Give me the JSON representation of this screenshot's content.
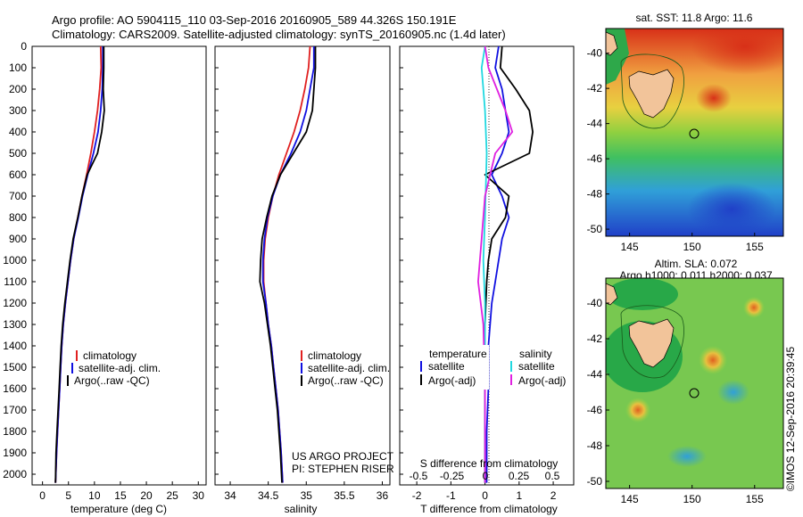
{
  "header": {
    "line1": "Argo profile: AO 5904115_110 03-Sep-2016 20160905_589 44.326S 150.191E",
    "line2": "Climatology: CARS2009. Satellite-adjusted climatology: synTS_20160905.nc (1.4d later)"
  },
  "depth_ticks": [
    "0",
    "100",
    "200",
    "300",
    "400",
    "500",
    "600",
    "700",
    "800",
    "900",
    "1000",
    "1100",
    "1200",
    "1300",
    "1400",
    "1500",
    "1600",
    "1700",
    "1800",
    "1900",
    "2000"
  ],
  "colors": {
    "climatology": "#e02020",
    "satellite": "#1010e0",
    "argo": "#000000",
    "salinity_satellite": "#20d8e0",
    "salinity_argo": "#e020e0"
  },
  "chart_data": [
    {
      "type": "line",
      "xlabel": "temperature (deg C)",
      "ylim": [
        0,
        2050
      ],
      "xlim": [
        -2,
        31.5
      ],
      "x_ticks": [
        "0",
        "5",
        "10",
        "15",
        "20",
        "25",
        "30"
      ],
      "legend": [
        "climatology",
        "satellite-adj. clim.",
        "Argo(..raw -QC)"
      ],
      "series": [
        {
          "name": "climatology",
          "color": "#e02020",
          "points": [
            [
              11.2,
              0
            ],
            [
              11.3,
              100
            ],
            [
              11.0,
              200
            ],
            [
              10.6,
              300
            ],
            [
              10.0,
              400
            ],
            [
              9.3,
              500
            ],
            [
              8.5,
              600
            ],
            [
              7.6,
              700
            ],
            [
              6.8,
              800
            ],
            [
              6.0,
              900
            ],
            [
              5.4,
              1000
            ],
            [
              4.9,
              1100
            ],
            [
              4.4,
              1200
            ],
            [
              4.0,
              1300
            ],
            [
              3.7,
              1400
            ],
            [
              3.5,
              1500
            ],
            [
              3.3,
              1600
            ],
            [
              3.1,
              1700
            ],
            [
              2.9,
              1800
            ],
            [
              2.7,
              1900
            ],
            [
              2.5,
              2040
            ]
          ]
        },
        {
          "name": "satellite-adj. clim.",
          "color": "#1010e0",
          "points": [
            [
              11.6,
              0
            ],
            [
              11.6,
              100
            ],
            [
              11.5,
              200
            ],
            [
              11.2,
              300
            ],
            [
              10.7,
              400
            ],
            [
              9.8,
              500
            ],
            [
              8.7,
              600
            ],
            [
              7.7,
              700
            ],
            [
              6.9,
              800
            ],
            [
              6.0,
              900
            ],
            [
              5.4,
              1000
            ],
            [
              4.9,
              1100
            ],
            [
              4.4,
              1200
            ],
            [
              4.0,
              1300
            ],
            [
              3.7,
              1400
            ],
            [
              3.5,
              1500
            ],
            [
              3.3,
              1600
            ],
            [
              3.1,
              1700
            ],
            [
              2.9,
              1800
            ],
            [
              2.7,
              1900
            ],
            [
              2.5,
              2040
            ]
          ]
        },
        {
          "name": "Argo(..raw -QC)",
          "color": "#000000",
          "points": [
            [
              11.8,
              0
            ],
            [
              11.8,
              100
            ],
            [
              11.7,
              200
            ],
            [
              11.9,
              300
            ],
            [
              11.4,
              400
            ],
            [
              10.6,
              500
            ],
            [
              8.6,
              600
            ],
            [
              7.6,
              700
            ],
            [
              6.8,
              800
            ],
            [
              5.9,
              900
            ],
            [
              5.3,
              1000
            ],
            [
              4.8,
              1100
            ],
            [
              4.3,
              1200
            ],
            [
              3.9,
              1300
            ],
            [
              3.6,
              1400
            ],
            [
              3.4,
              1500
            ],
            [
              3.2,
              1600
            ],
            [
              3.0,
              1700
            ],
            [
              2.8,
              1800
            ],
            [
              2.6,
              1900
            ],
            [
              2.5,
              2040
            ]
          ]
        }
      ]
    },
    {
      "type": "line",
      "xlabel": "salinity",
      "ylim": [
        0,
        2050
      ],
      "xlim": [
        33.8,
        36.1
      ],
      "x_ticks": [
        "34",
        "34.5",
        "35",
        "35.5",
        "36"
      ],
      "legend": [
        "climatology",
        "satellite-adj. clim.",
        "Argo(..raw -QC)"
      ],
      "annotation": [
        "US ARGO PROJECT",
        "PI: STEPHEN RISER"
      ],
      "series": [
        {
          "name": "climatology",
          "color": "#e02020",
          "points": [
            [
              35.05,
              0
            ],
            [
              35.03,
              100
            ],
            [
              34.98,
              200
            ],
            [
              34.92,
              300
            ],
            [
              34.84,
              400
            ],
            [
              34.74,
              500
            ],
            [
              34.64,
              600
            ],
            [
              34.56,
              700
            ],
            [
              34.5,
              800
            ],
            [
              34.46,
              900
            ],
            [
              34.44,
              1000
            ],
            [
              34.44,
              1100
            ],
            [
              34.47,
              1200
            ],
            [
              34.5,
              1300
            ],
            [
              34.54,
              1400
            ],
            [
              34.57,
              1500
            ],
            [
              34.6,
              1600
            ],
            [
              34.63,
              1700
            ],
            [
              34.65,
              1800
            ],
            [
              34.67,
              1900
            ],
            [
              34.69,
              2040
            ]
          ]
        },
        {
          "name": "satellite-adj. clim.",
          "color": "#1010e0",
          "points": [
            [
              35.1,
              0
            ],
            [
              35.1,
              100
            ],
            [
              35.05,
              200
            ],
            [
              35.0,
              300
            ],
            [
              34.92,
              400
            ],
            [
              34.8,
              500
            ],
            [
              34.66,
              600
            ],
            [
              34.56,
              700
            ],
            [
              34.49,
              800
            ],
            [
              34.45,
              900
            ],
            [
              34.43,
              1000
            ],
            [
              34.43,
              1100
            ],
            [
              34.47,
              1200
            ],
            [
              34.5,
              1300
            ],
            [
              34.54,
              1400
            ],
            [
              34.57,
              1500
            ],
            [
              34.6,
              1600
            ],
            [
              34.63,
              1700
            ],
            [
              34.65,
              1800
            ],
            [
              34.67,
              1900
            ],
            [
              34.69,
              2040
            ]
          ]
        },
        {
          "name": "Argo(..raw -QC)",
          "color": "#000000",
          "points": [
            [
              35.12,
              0
            ],
            [
              35.12,
              100
            ],
            [
              35.1,
              200
            ],
            [
              35.08,
              300
            ],
            [
              35.0,
              400
            ],
            [
              34.83,
              500
            ],
            [
              34.66,
              600
            ],
            [
              34.55,
              700
            ],
            [
              34.48,
              800
            ],
            [
              34.42,
              900
            ],
            [
              34.4,
              1000
            ],
            [
              34.39,
              1100
            ],
            [
              34.45,
              1200
            ],
            [
              34.49,
              1300
            ],
            [
              34.53,
              1400
            ],
            [
              34.56,
              1500
            ],
            [
              34.59,
              1600
            ],
            [
              34.62,
              1700
            ],
            [
              34.64,
              1800
            ],
            [
              34.66,
              1900
            ],
            [
              34.68,
              2040
            ]
          ]
        }
      ]
    },
    {
      "type": "line",
      "xlabel": "T difference from climatology",
      "xlabel_top": "S difference from climatology",
      "ylim": [
        0,
        2050
      ],
      "xlim": [
        -2.5,
        2.6
      ],
      "x_ticks": [
        "-2",
        "-1",
        "0",
        "1",
        "2"
      ],
      "x_ticks_top": [
        "-0.5",
        "-0.25",
        "0",
        "0.25",
        "0.5"
      ],
      "legend": [
        "temperature",
        "satellite",
        "Argo(-adj)",
        "salinity",
        "satellite",
        "Argo(-adj)"
      ],
      "series": [
        {
          "name": "temperature satellite",
          "color": "#1010e0",
          "points": [
            [
              0.4,
              0
            ],
            [
              0.3,
              100
            ],
            [
              0.5,
              200
            ],
            [
              0.6,
              300
            ],
            [
              0.7,
              400
            ],
            [
              0.5,
              500
            ],
            [
              0.2,
              600
            ],
            [
              0.5,
              700
            ],
            [
              0.7,
              800
            ],
            [
              0.5,
              900
            ],
            [
              0.4,
              1000
            ],
            [
              0.3,
              1100
            ],
            [
              0.2,
              1200
            ],
            [
              0.1,
              1400
            ],
            [
              0.1,
              1600
            ],
            [
              0.05,
              1800
            ],
            [
              0.05,
              2040
            ]
          ]
        },
        {
          "name": "temperature Argo(-adj)",
          "color": "#000000",
          "points": [
            [
              0.5,
              0
            ],
            [
              0.45,
              100
            ],
            [
              0.9,
              200
            ],
            [
              1.3,
              300
            ],
            [
              1.4,
              400
            ],
            [
              1.3,
              500
            ],
            [
              0.0,
              600
            ],
            [
              0.7,
              700
            ],
            [
              0.6,
              800
            ],
            [
              0.2,
              900
            ],
            [
              0.1,
              1000
            ],
            [
              0.05,
              1100
            ],
            [
              0.0,
              1300
            ],
            [
              0.0,
              1600
            ],
            [
              0.0,
              2040
            ]
          ]
        },
        {
          "name": "salinity satellite",
          "color": "#20d8e0",
          "points": [
            [
              0.0,
              0
            ],
            [
              -0.1,
              100
            ],
            [
              0.0,
              300
            ],
            [
              0.05,
              500
            ],
            [
              0.0,
              800
            ],
            [
              -0.05,
              1000
            ],
            [
              0.0,
              1200
            ],
            [
              0.0,
              1600
            ],
            [
              0.0,
              2040
            ]
          ]
        },
        {
          "name": "salinity Argo(-adj)",
          "color": "#e020e0",
          "points": [
            [
              0.0,
              0
            ],
            [
              0.1,
              100
            ],
            [
              0.6,
              300
            ],
            [
              0.8,
              400
            ],
            [
              0.3,
              500
            ],
            [
              0.0,
              700
            ],
            [
              -0.1,
              900
            ],
            [
              -0.2,
              1100
            ],
            [
              -0.05,
              1300
            ],
            [
              0.0,
              1600
            ],
            [
              0.0,
              2040
            ]
          ]
        }
      ]
    },
    {
      "type": "heatmap",
      "title": "sat. SST: 11.8 Argo: 11.6",
      "x_ticks": [
        "145",
        "150",
        "155"
      ],
      "y_ticks": [
        "-40",
        "-42",
        "-44",
        "-46",
        "-48",
        "-50"
      ]
    },
    {
      "type": "heatmap",
      "title_line1": "Altim. SLA: 0.072",
      "title_line2": "Argo h1000: 0.011 h2000: 0.037",
      "x_ticks": [
        "145",
        "150",
        "155"
      ],
      "y_ticks": [
        "-40",
        "-42",
        "-44",
        "-46",
        "-48",
        "-50"
      ]
    }
  ],
  "side_label": "©IMOS 12-Sep-2016 20:39:45"
}
